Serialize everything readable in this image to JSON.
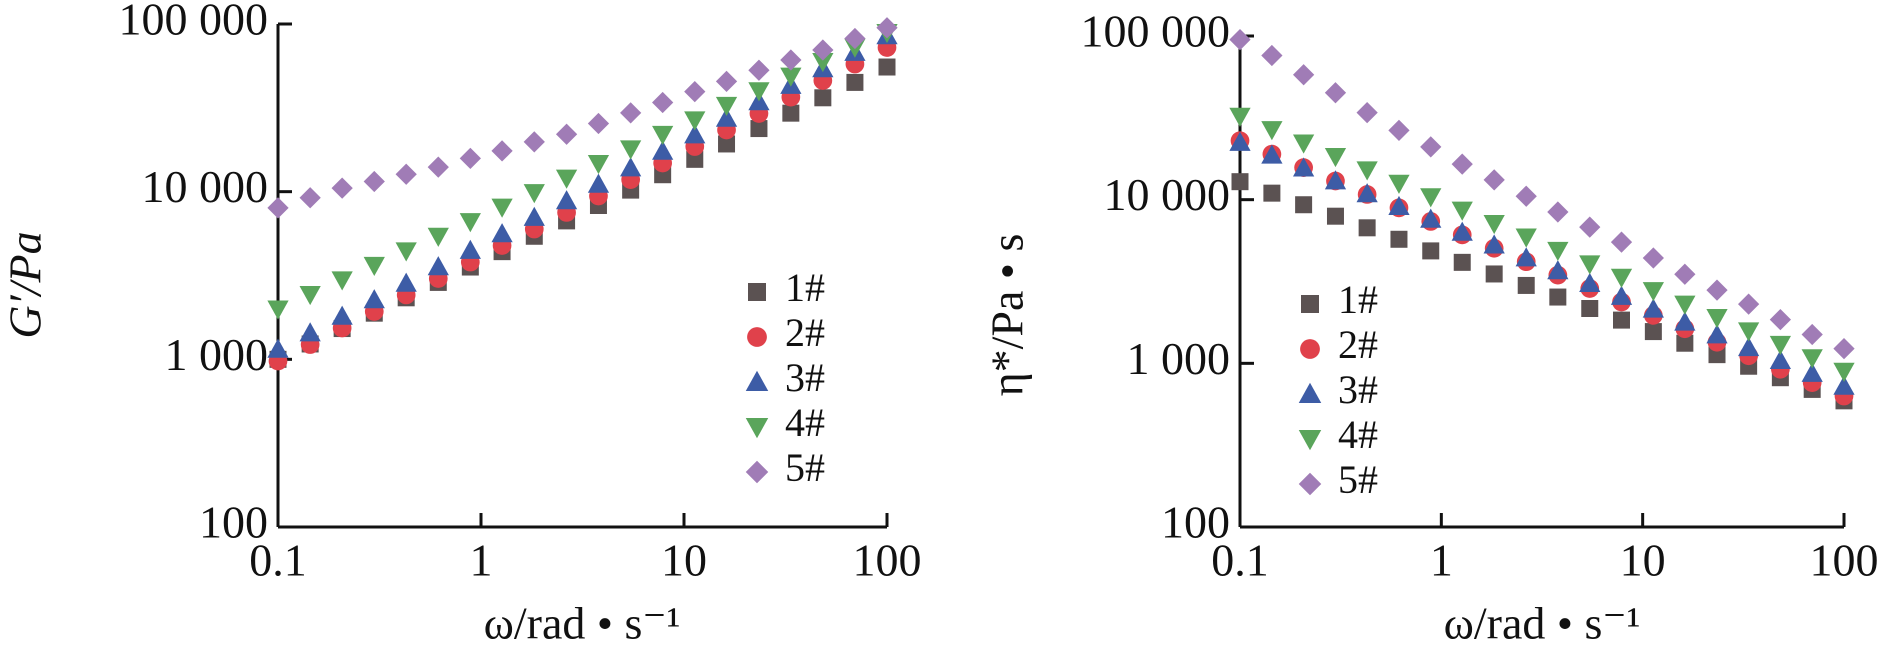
{
  "chart_data": [
    {
      "type": "scatter",
      "y_label": "G′/Pa",
      "x_label": "ω/rad • s⁻¹",
      "log_x": true,
      "log_y": true,
      "legend": "right",
      "x": [
        0.1,
        0.144,
        0.207,
        0.298,
        0.428,
        0.616,
        0.886,
        1.27,
        1.83,
        2.64,
        3.79,
        5.46,
        7.85,
        11.3,
        16.2,
        23.4,
        33.6,
        48.3,
        69.5,
        100
      ],
      "xlim": [
        0.1,
        100
      ],
      "xticks": [
        0.1,
        1,
        10,
        100
      ],
      "ylim": [
        100,
        100000
      ],
      "yticks": [
        100,
        {
          "value": 1000,
          "label": "1 000"
        },
        {
          "value": 10000,
          "label": "10 000"
        },
        {
          "value": 100000,
          "label": "100 000"
        }
      ],
      "series": [
        {
          "name": "1#",
          "color": "#5b5252",
          "marker": "square",
          "values": [
            1000,
            1235,
            1526,
            1885,
            2328,
            2876,
            3552,
            4388,
            5420,
            6695,
            8270,
            10216,
            12620,
            15590,
            19257,
            23790,
            29390,
            36300,
            44840,
            55390
          ]
        },
        {
          "name": "2#",
          "color": "#e0414b",
          "marker": "circle",
          "values": [
            977,
            1225,
            1538,
            1928,
            2421,
            3034,
            3802,
            4775,
            5984,
            7516,
            9419,
            11800,
            14830,
            18580,
            23330,
            29240,
            36640,
            46030,
            57680,
            72440
          ]
        },
        {
          "name": "3#",
          "color": "#3d5ca6",
          "marker": "triangle-up",
          "values": [
            1148,
            1439,
            1807,
            2265,
            2845,
            3565,
            4467,
            5610,
            7031,
            8831,
            11067,
            13865,
            17425,
            21830,
            27410,
            34360,
            43050,
            54090,
            67770,
            85120
          ]
        },
        {
          "name": "4#",
          "color": "#5aa55b",
          "marker": "triangle-down",
          "values": [
            1995,
            2438,
            2979,
            3631,
            4436,
            5420,
            6622,
            8091,
            9863,
            12050,
            14720,
            17990,
            21980,
            26790,
            32730,
            39990,
            48860,
            59700,
            72780,
            88920
          ]
        },
        {
          "name": "5#",
          "color": "#a07cb6",
          "marker": "diamond",
          "values": [
            8000,
            9200,
            10500,
            11500,
            12700,
            14000,
            15800,
            17500,
            19800,
            22000,
            25500,
            29500,
            34000,
            39500,
            45500,
            53000,
            61000,
            70000,
            82000,
            95000
          ]
        }
      ]
    },
    {
      "type": "scatter",
      "y_label": "η*/Pa • s",
      "x_label": "ω/rad • s⁻¹",
      "log_x": true,
      "log_y": true,
      "legend": "left",
      "x": [
        0.1,
        0.144,
        0.207,
        0.298,
        0.428,
        0.616,
        0.886,
        1.27,
        1.83,
        2.64,
        3.79,
        5.46,
        7.85,
        11.3,
        16.2,
        23.4,
        33.6,
        48.3,
        69.5,
        100
      ],
      "xlim": [
        0.1,
        100
      ],
      "xticks": [
        0.1,
        1,
        10,
        100
      ],
      "ylim": [
        100,
        100000
      ],
      "yticks": [
        100,
        {
          "value": 1000,
          "label": "1 000"
        },
        {
          "value": 10000,
          "label": "10 000"
        },
        {
          "value": 100000,
          "label": "100 000"
        }
      ],
      "series": [
        {
          "name": "1#",
          "color": "#5b5252",
          "marker": "square",
          "values": [
            12880,
            10960,
            9311,
            7925,
            6730,
            5728,
            4864,
            4140,
            3516,
            2992,
            2541,
            2163,
            1837,
            1563,
            1327,
            1130,
            960,
            817,
            693,
            590
          ]
        },
        {
          "name": "2#",
          "color": "#e0414b",
          "marker": "circle",
          "values": [
            22910,
            18970,
            15700,
            13000,
            10760,
            8913,
            7362,
            6095,
            5047,
            4178,
            3459,
            2864,
            2371,
            1963,
            1626,
            1346,
            1112,
            920,
            762,
            631
          ]
        },
        {
          "name": "3#",
          "color": "#3d5ca6",
          "marker": "triangle-up",
          "values": [
            22390,
            18700,
            15600,
            13030,
            10860,
            9078,
            7586,
            6324,
            5284,
            4406,
            3681,
            3076,
            2564,
            2143,
            1786,
            1493,
            1247,
            1040,
            869,
            724
          ]
        },
        {
          "name": "4#",
          "color": "#5aa55b",
          "marker": "triangle-down",
          "values": [
            32360,
            26790,
            22180,
            18370,
            15210,
            12590,
            10420,
            8630,
            7145,
            5916,
            4898,
            4055,
            3357,
            2780,
            2301,
            1905,
            1578,
            1306,
            1081,
            895
          ]
        },
        {
          "name": "5#",
          "color": "#a07cb6",
          "marker": "diamond",
          "values": [
            95000,
            76000,
            58000,
            45000,
            34000,
            26500,
            21000,
            16500,
            13200,
            10500,
            8400,
            6800,
            5500,
            4400,
            3500,
            2800,
            2300,
            1850,
            1500,
            1230
          ]
        }
      ]
    }
  ]
}
